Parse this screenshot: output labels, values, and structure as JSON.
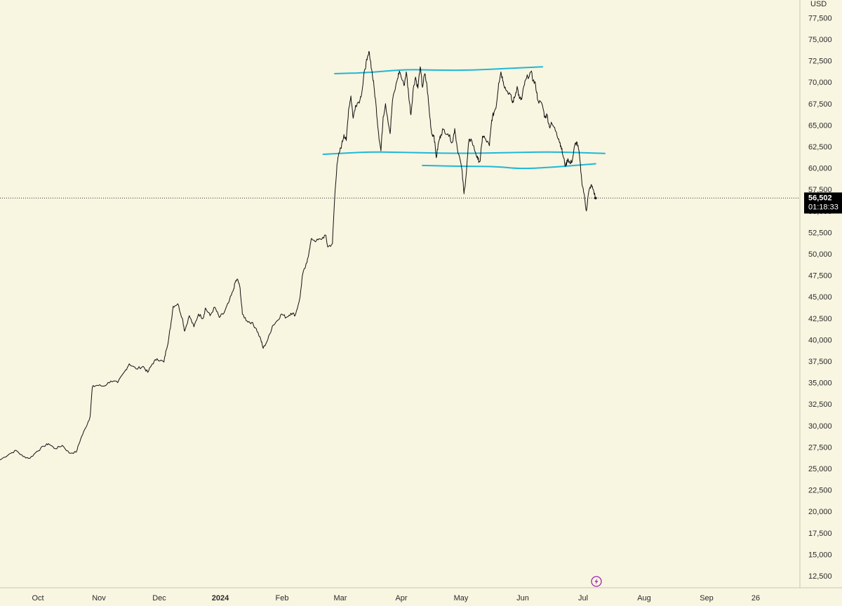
{
  "colors": {
    "background": "#f8f5e1",
    "price_line": "#111111",
    "trendline": "#1fb8d6",
    "axis_text": "#2b2b2b",
    "axis_border": "#c9c6b4",
    "price_tag_bg": "#000000",
    "lightning_icon": "#9c27b0"
  },
  "axis": {
    "currency": "USD",
    "price_ticks": [
      "12,500",
      "15,000",
      "17,500",
      "20,000",
      "22,500",
      "25,000",
      "27,500",
      "30,000",
      "32,500",
      "35,000",
      "37,500",
      "40,000",
      "42,500",
      "45,000",
      "47,500",
      "50,000",
      "52,500",
      "55,000",
      "57,500",
      "60,000",
      "62,500",
      "65,000",
      "67,500",
      "70,000",
      "72,500",
      "75,000",
      "77,500"
    ],
    "time_labels": [
      {
        "text": "Oct",
        "bold": false
      },
      {
        "text": "Nov",
        "bold": false
      },
      {
        "text": "Dec",
        "bold": false
      },
      {
        "text": "2024",
        "bold": true
      },
      {
        "text": "Feb",
        "bold": false
      },
      {
        "text": "Mar",
        "bold": false
      },
      {
        "text": "Apr",
        "bold": false
      },
      {
        "text": "May",
        "bold": false
      },
      {
        "text": "Jun",
        "bold": false
      },
      {
        "text": "Jul",
        "bold": false
      },
      {
        "text": "Aug",
        "bold": false
      },
      {
        "text": "Sep",
        "bold": false
      },
      {
        "text": "26",
        "bold": false
      }
    ]
  },
  "price_tag": {
    "price": "56,502",
    "countdown": "01:18:33"
  },
  "icons": {
    "replay": "lightning-icon"
  },
  "chart_data": {
    "type": "line",
    "x_unit": "days since 2023-09-25",
    "ylim": [
      10000,
      80000
    ],
    "last_price": 56502,
    "series": [
      {
        "values": [
          [
            0,
            26000
          ],
          [
            4,
            26700
          ],
          [
            7,
            27100
          ],
          [
            10,
            26400
          ],
          [
            13,
            26200
          ],
          [
            16,
            27000
          ],
          [
            19,
            27600
          ],
          [
            21,
            27900
          ],
          [
            24,
            27300
          ],
          [
            27,
            27700
          ],
          [
            30,
            26800
          ],
          [
            33,
            26900
          ],
          [
            35,
            28500
          ],
          [
            37,
            29700
          ],
          [
            39,
            31000
          ],
          [
            40,
            34500
          ],
          [
            42,
            34700
          ],
          [
            45,
            34600
          ],
          [
            48,
            35200
          ],
          [
            51,
            35000
          ],
          [
            54,
            36300
          ],
          [
            56,
            37200
          ],
          [
            59,
            36600
          ],
          [
            62,
            36900
          ],
          [
            64,
            36200
          ],
          [
            66,
            37200
          ],
          [
            68,
            37800
          ],
          [
            71,
            37400
          ],
          [
            72,
            38800
          ],
          [
            73,
            40000
          ],
          [
            74,
            41800
          ],
          [
            75,
            43900
          ],
          [
            77,
            44200
          ],
          [
            79,
            42500
          ],
          [
            80,
            41000
          ],
          [
            82,
            42800
          ],
          [
            84,
            41500
          ],
          [
            86,
            43000
          ],
          [
            88,
            42500
          ],
          [
            89,
            43700
          ],
          [
            91,
            42800
          ],
          [
            93,
            43800
          ],
          [
            95,
            42600
          ],
          [
            97,
            43100
          ],
          [
            99,
            44300
          ],
          [
            101,
            45700
          ],
          [
            102,
            46800
          ],
          [
            103,
            47000
          ],
          [
            104,
            46000
          ],
          [
            105,
            43000
          ],
          [
            107,
            42200
          ],
          [
            109,
            42000
          ],
          [
            111,
            41300
          ],
          [
            113,
            40000
          ],
          [
            114,
            39000
          ],
          [
            116,
            40000
          ],
          [
            118,
            41600
          ],
          [
            120,
            42200
          ],
          [
            122,
            43000
          ],
          [
            124,
            42600
          ],
          [
            126,
            43100
          ],
          [
            128,
            42900
          ],
          [
            130,
            45000
          ],
          [
            131,
            47500
          ],
          [
            133,
            49000
          ],
          [
            134,
            50500
          ],
          [
            135,
            51800
          ],
          [
            137,
            51500
          ],
          [
            139,
            51700
          ],
          [
            141,
            52200
          ],
          [
            142,
            50800
          ],
          [
            144,
            51200
          ],
          [
            145,
            56700
          ],
          [
            146,
            60500
          ],
          [
            147,
            61800
          ],
          [
            148,
            62700
          ],
          [
            149,
            63900
          ],
          [
            150,
            63200
          ],
          [
            151,
            66800
          ],
          [
            152,
            68400
          ],
          [
            153,
            65800
          ],
          [
            154,
            67300
          ],
          [
            156,
            68000
          ],
          [
            157,
            69300
          ],
          [
            158,
            71500
          ],
          [
            159,
            72600
          ],
          [
            160,
            73500
          ],
          [
            161,
            71500
          ],
          [
            162,
            69500
          ],
          [
            163,
            67000
          ],
          [
            164,
            64000
          ],
          [
            165,
            62000
          ],
          [
            166,
            66000
          ],
          [
            167,
            67500
          ],
          [
            169,
            64000
          ],
          [
            170,
            67800
          ],
          [
            172,
            70200
          ],
          [
            173,
            71300
          ],
          [
            175,
            69600
          ],
          [
            176,
            71200
          ],
          [
            177,
            68600
          ],
          [
            178,
            66200
          ],
          [
            179,
            69200
          ],
          [
            180,
            70600
          ],
          [
            181,
            69300
          ],
          [
            182,
            71800
          ],
          [
            183,
            69400
          ],
          [
            184,
            71000
          ],
          [
            185,
            69500
          ],
          [
            186,
            66500
          ],
          [
            187,
            64000
          ],
          [
            188,
            63800
          ],
          [
            189,
            61200
          ],
          [
            190,
            63000
          ],
          [
            191,
            63900
          ],
          [
            192,
            64500
          ],
          [
            194,
            64000
          ],
          [
            196,
            63000
          ],
          [
            197,
            64600
          ],
          [
            198,
            62500
          ],
          [
            200,
            60000
          ],
          [
            201,
            57000
          ],
          [
            202,
            59400
          ],
          [
            203,
            63000
          ],
          [
            204,
            63400
          ],
          [
            206,
            61800
          ],
          [
            207,
            61000
          ],
          [
            208,
            60800
          ],
          [
            209,
            63700
          ],
          [
            210,
            63500
          ],
          [
            212,
            62600
          ],
          [
            213,
            65600
          ],
          [
            214,
            66500
          ],
          [
            215,
            67300
          ],
          [
            216,
            69900
          ],
          [
            217,
            71200
          ],
          [
            218,
            70100
          ],
          [
            219,
            69200
          ],
          [
            221,
            68600
          ],
          [
            222,
            67600
          ],
          [
            223,
            68300
          ],
          [
            224,
            69500
          ],
          [
            225,
            68100
          ],
          [
            226,
            68000
          ],
          [
            227,
            69600
          ],
          [
            228,
            70400
          ],
          [
            230,
            71200
          ],
          [
            231,
            70200
          ],
          [
            232,
            69700
          ],
          [
            233,
            67900
          ],
          [
            235,
            67300
          ],
          [
            236,
            65900
          ],
          [
            237,
            66200
          ],
          [
            238,
            64800
          ],
          [
            239,
            65200
          ],
          [
            241,
            64200
          ],
          [
            242,
            63400
          ],
          [
            243,
            62600
          ],
          [
            244,
            61300
          ],
          [
            245,
            60200
          ],
          [
            246,
            61100
          ],
          [
            247,
            60500
          ],
          [
            248,
            61000
          ],
          [
            249,
            62700
          ],
          [
            250,
            63000
          ],
          [
            251,
            61500
          ],
          [
            252,
            58500
          ],
          [
            253,
            57000
          ],
          [
            254,
            55000
          ],
          [
            255,
            57200
          ],
          [
            256,
            58000
          ],
          [
            257,
            57500
          ],
          [
            258,
            56502
          ]
        ]
      }
    ],
    "annotations": [
      {
        "type": "trendline",
        "points": [
          [
            145,
            71000
          ],
          [
            160,
            71100
          ],
          [
            175,
            71500
          ],
          [
            190,
            71400
          ],
          [
            205,
            71400
          ],
          [
            220,
            71600
          ],
          [
            235,
            71800
          ]
        ]
      },
      {
        "type": "trendline",
        "points": [
          [
            140,
            61600
          ],
          [
            160,
            61900
          ],
          [
            180,
            61800
          ],
          [
            200,
            61700
          ],
          [
            220,
            61800
          ],
          [
            240,
            61900
          ],
          [
            262,
            61700
          ]
        ]
      },
      {
        "type": "trendline",
        "points": [
          [
            183,
            60300
          ],
          [
            200,
            60200
          ],
          [
            215,
            60200
          ],
          [
            225,
            59900
          ],
          [
            240,
            60100
          ],
          [
            258,
            60500
          ]
        ]
      }
    ]
  }
}
